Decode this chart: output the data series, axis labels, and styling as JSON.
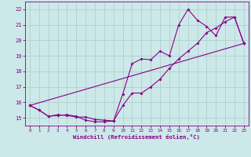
{
  "bg_color": "#cce8e8",
  "line_color": "#880088",
  "grid_color": "#aacccc",
  "xlim": [
    -0.5,
    23.5
  ],
  "ylim": [
    14.5,
    22.5
  ],
  "xticks": [
    0,
    1,
    2,
    3,
    4,
    5,
    6,
    7,
    8,
    9,
    10,
    11,
    12,
    13,
    14,
    15,
    16,
    17,
    18,
    19,
    20,
    21,
    22,
    23
  ],
  "yticks": [
    15,
    16,
    17,
    18,
    19,
    20,
    21,
    22
  ],
  "xlabel": "Windchill (Refroidissement éolien,°C)",
  "line1_x": [
    0,
    1,
    2,
    3,
    4,
    5,
    6,
    7,
    8,
    9,
    10,
    11,
    12,
    13,
    14,
    15,
    16,
    17,
    18,
    19,
    20,
    21,
    22,
    23
  ],
  "line1_y": [
    15.8,
    15.5,
    15.1,
    15.15,
    15.2,
    15.1,
    14.85,
    14.75,
    14.75,
    14.8,
    15.8,
    16.6,
    16.6,
    17.0,
    17.5,
    18.2,
    18.8,
    19.3,
    19.8,
    20.5,
    20.8,
    21.2,
    21.5,
    19.8
  ],
  "line2_x": [
    0,
    1,
    2,
    3,
    4,
    5,
    6,
    7,
    8,
    9,
    10,
    11,
    12,
    13,
    14,
    15,
    16,
    17,
    18,
    19,
    20,
    21,
    22,
    23
  ],
  "line2_y": [
    15.8,
    15.5,
    15.1,
    15.2,
    15.15,
    15.05,
    15.05,
    14.9,
    14.85,
    14.8,
    16.55,
    18.5,
    18.8,
    18.75,
    19.3,
    19.0,
    21.0,
    22.0,
    21.3,
    20.9,
    20.3,
    21.5,
    21.5,
    19.8
  ],
  "line3_x": [
    0,
    23
  ],
  "line3_y": [
    15.8,
    19.8
  ]
}
